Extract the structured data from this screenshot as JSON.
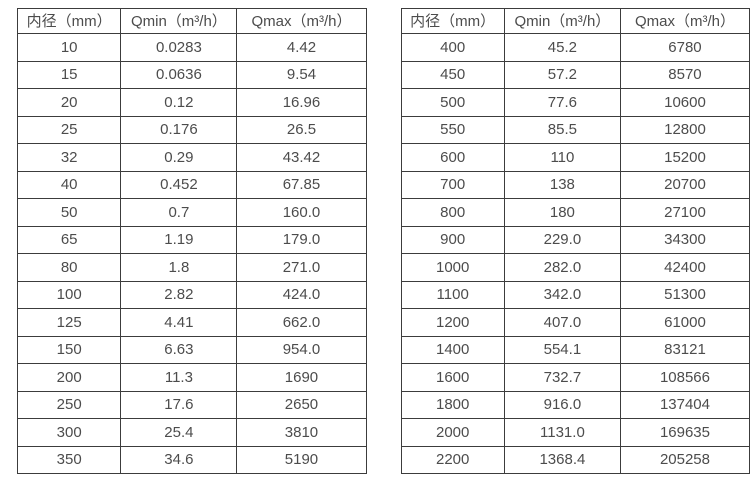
{
  "colors": {
    "border": "#3c3c3c",
    "text": "#4c4c4c",
    "background": "#ffffff"
  },
  "left_table": {
    "headers": [
      "内径（mm）",
      "Qmin（m³/h）",
      "Qmax（m³/h）"
    ],
    "rows": [
      [
        "10",
        "0.0283",
        "4.42"
      ],
      [
        "15",
        "0.0636",
        "9.54"
      ],
      [
        "20",
        "0.12",
        "16.96"
      ],
      [
        "25",
        "0.176",
        "26.5"
      ],
      [
        "32",
        "0.29",
        "43.42"
      ],
      [
        "40",
        "0.452",
        "67.85"
      ],
      [
        "50",
        "0.7",
        "160.0"
      ],
      [
        "65",
        "1.19",
        "179.0"
      ],
      [
        "80",
        "1.8",
        "271.0"
      ],
      [
        "100",
        "2.82",
        "424.0"
      ],
      [
        "125",
        "4.41",
        "662.0"
      ],
      [
        "150",
        "6.63",
        "954.0"
      ],
      [
        "200",
        "11.3",
        "1690"
      ],
      [
        "250",
        "17.6",
        "2650"
      ],
      [
        "300",
        "25.4",
        "3810"
      ],
      [
        "350",
        "34.6",
        "5190"
      ]
    ]
  },
  "right_table": {
    "headers": [
      "内径（mm）",
      "Qmin（m³/h）",
      "Qmax（m³/h）"
    ],
    "rows": [
      [
        "400",
        "45.2",
        "6780"
      ],
      [
        "450",
        "57.2",
        "8570"
      ],
      [
        "500",
        "77.6",
        "10600"
      ],
      [
        "550",
        "85.5",
        "12800"
      ],
      [
        "600",
        "110",
        "15200"
      ],
      [
        "700",
        "138",
        "20700"
      ],
      [
        "800",
        "180",
        "27100"
      ],
      [
        "900",
        "229.0",
        "34300"
      ],
      [
        "1000",
        "282.0",
        "42400"
      ],
      [
        "1100",
        "342.0",
        "51300"
      ],
      [
        "1200",
        "407.0",
        "61000"
      ],
      [
        "1400",
        "554.1",
        "83121"
      ],
      [
        "1600",
        "732.7",
        "108566"
      ],
      [
        "1800",
        "916.0",
        "137404"
      ],
      [
        "2000",
        "1131.0",
        "169635"
      ],
      [
        "2200",
        "1368.4",
        "205258"
      ]
    ]
  }
}
